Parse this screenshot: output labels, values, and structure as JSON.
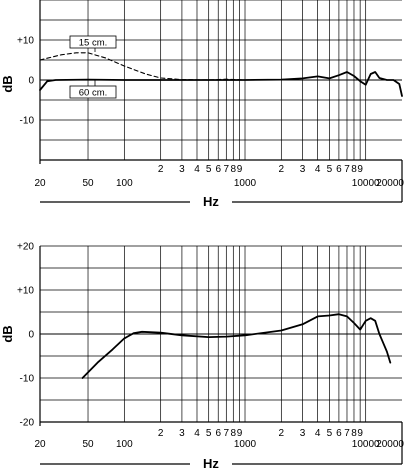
{
  "chart_data": [
    {
      "type": "line",
      "x_scale": "log",
      "xlim": [
        20,
        20000
      ],
      "ylim": [
        -20,
        20
      ],
      "xlabel": "Hz",
      "ylabel": "dB",
      "grid": true,
      "y_ticks": [
        {
          "value": 10,
          "label": "+10"
        },
        {
          "value": 0,
          "label": "0"
        },
        {
          "value": -10,
          "label": "-10"
        }
      ],
      "x_ticks": [
        {
          "value": 20,
          "label": "20",
          "row": "main"
        },
        {
          "value": 50,
          "label": "50",
          "row": "main"
        },
        {
          "value": 100,
          "label": "100",
          "row": "main"
        },
        {
          "value": 200,
          "label": "2",
          "row": "minor"
        },
        {
          "value": 300,
          "label": "3",
          "row": "minor"
        },
        {
          "value": 400,
          "label": "4",
          "row": "minor"
        },
        {
          "value": 500,
          "label": "5",
          "row": "minor"
        },
        {
          "value": 600,
          "label": "6",
          "row": "minor"
        },
        {
          "value": 700,
          "label": "7",
          "row": "minor"
        },
        {
          "value": 800,
          "label": "8",
          "row": "minor"
        },
        {
          "value": 900,
          "label": "9",
          "row": "minor"
        },
        {
          "value": 1000,
          "label": "1000",
          "row": "main"
        },
        {
          "value": 2000,
          "label": "2",
          "row": "minor"
        },
        {
          "value": 3000,
          "label": "3",
          "row": "minor"
        },
        {
          "value": 4000,
          "label": "4",
          "row": "minor"
        },
        {
          "value": 5000,
          "label": "5",
          "row": "minor"
        },
        {
          "value": 6000,
          "label": "6",
          "row": "minor"
        },
        {
          "value": 7000,
          "label": "7",
          "row": "minor"
        },
        {
          "value": 8000,
          "label": "8",
          "row": "minor"
        },
        {
          "value": 9000,
          "label": "9",
          "row": "minor"
        },
        {
          "value": 10000,
          "label": "10000",
          "row": "main"
        },
        {
          "value": 20000,
          "label": "20000",
          "row": "main"
        }
      ],
      "series": [
        {
          "name": "15 cm.",
          "style": "dashed",
          "points": [
            [
              20,
              5
            ],
            [
              30,
              6.3
            ],
            [
              40,
              6.8
            ],
            [
              50,
              6.8
            ],
            [
              70,
              5.5
            ],
            [
              100,
              3.5
            ],
            [
              150,
              1.5
            ],
            [
              200,
              0.5
            ],
            [
              300,
              0.1
            ],
            [
              500,
              0
            ],
            [
              700,
              0.2
            ],
            [
              1000,
              0
            ],
            [
              2000,
              0.1
            ],
            [
              3000,
              0.4
            ],
            [
              4000,
              0.9
            ],
            [
              5000,
              0.4
            ],
            [
              6000,
              1.2
            ],
            [
              7000,
              2
            ],
            [
              8000,
              1
            ],
            [
              9000,
              -0.3
            ],
            [
              10000,
              -1.2
            ],
            [
              11000,
              1.5
            ],
            [
              12000,
              2
            ],
            [
              13000,
              0.5
            ],
            [
              15000,
              0
            ],
            [
              17000,
              0
            ],
            [
              19000,
              -1
            ],
            [
              20000,
              -4
            ]
          ]
        },
        {
          "name": "60 cm.",
          "style": "solid",
          "points": [
            [
              20,
              -2.5
            ],
            [
              23,
              -0.3
            ],
            [
              27,
              0
            ],
            [
              50,
              0.1
            ],
            [
              100,
              0
            ],
            [
              200,
              0
            ],
            [
              500,
              0
            ],
            [
              1000,
              0
            ],
            [
              2000,
              0.1
            ],
            [
              3000,
              0.4
            ],
            [
              4000,
              0.9
            ],
            [
              5000,
              0.4
            ],
            [
              6000,
              1.2
            ],
            [
              7000,
              2
            ],
            [
              8000,
              1
            ],
            [
              9000,
              -0.3
            ],
            [
              10000,
              -1.2
            ],
            [
              11000,
              1.5
            ],
            [
              12000,
              2
            ],
            [
              13000,
              0.5
            ],
            [
              15000,
              0
            ],
            [
              17000,
              0
            ],
            [
              19000,
              -1
            ],
            [
              20000,
              -4
            ]
          ]
        }
      ],
      "annotations": [
        {
          "text": "15 cm.",
          "target": "15 cm."
        },
        {
          "text": "60 cm.",
          "target": "60 cm."
        }
      ]
    },
    {
      "type": "line",
      "x_scale": "log",
      "xlim": [
        20,
        20000
      ],
      "ylim": [
        -20,
        20
      ],
      "xlabel": "Hz",
      "ylabel": "dB",
      "grid": true,
      "y_ticks": [
        {
          "value": 20,
          "label": "+20"
        },
        {
          "value": 10,
          "label": "+10"
        },
        {
          "value": 0,
          "label": "0"
        },
        {
          "value": -10,
          "label": "-10"
        },
        {
          "value": -20,
          "label": "-20"
        }
      ],
      "x_ticks": [
        {
          "value": 20,
          "label": "20",
          "row": "main"
        },
        {
          "value": 50,
          "label": "50",
          "row": "main"
        },
        {
          "value": 100,
          "label": "100",
          "row": "main"
        },
        {
          "value": 200,
          "label": "2",
          "row": "minor"
        },
        {
          "value": 300,
          "label": "3",
          "row": "minor"
        },
        {
          "value": 400,
          "label": "4",
          "row": "minor"
        },
        {
          "value": 500,
          "label": "5",
          "row": "minor"
        },
        {
          "value": 600,
          "label": "6",
          "row": "minor"
        },
        {
          "value": 700,
          "label": "7",
          "row": "minor"
        },
        {
          "value": 800,
          "label": "8",
          "row": "minor"
        },
        {
          "value": 900,
          "label": "9",
          "row": "minor"
        },
        {
          "value": 1000,
          "label": "1000",
          "row": "main"
        },
        {
          "value": 2000,
          "label": "2",
          "row": "minor"
        },
        {
          "value": 3000,
          "label": "3",
          "row": "minor"
        },
        {
          "value": 4000,
          "label": "4",
          "row": "minor"
        },
        {
          "value": 5000,
          "label": "5",
          "row": "minor"
        },
        {
          "value": 6000,
          "label": "6",
          "row": "minor"
        },
        {
          "value": 7000,
          "label": "7",
          "row": "minor"
        },
        {
          "value": 8000,
          "label": "8",
          "row": "minor"
        },
        {
          "value": 9000,
          "label": "9",
          "row": "minor"
        },
        {
          "value": 10000,
          "label": "10000",
          "row": "main"
        },
        {
          "value": 20000,
          "label": "20000",
          "row": "main"
        }
      ],
      "series": [
        {
          "style": "solid",
          "points": [
            [
              45,
              -10
            ],
            [
              60,
              -6.5
            ],
            [
              80,
              -3.5
            ],
            [
              100,
              -1
            ],
            [
              120,
              0.2
            ],
            [
              140,
              0.5
            ],
            [
              200,
              0.3
            ],
            [
              300,
              -0.3
            ],
            [
              500,
              -0.7
            ],
            [
              700,
              -0.6
            ],
            [
              1000,
              -0.3
            ],
            [
              2000,
              0.8
            ],
            [
              3000,
              2.2
            ],
            [
              4000,
              4
            ],
            [
              5000,
              4.2
            ],
            [
              6000,
              4.5
            ],
            [
              7000,
              4
            ],
            [
              8000,
              2.5
            ],
            [
              9000,
              1
            ],
            [
              10000,
              3
            ],
            [
              11000,
              3.6
            ],
            [
              12000,
              3
            ],
            [
              13000,
              0
            ],
            [
              15000,
              -4
            ],
            [
              16000,
              -6.5
            ]
          ]
        }
      ]
    }
  ]
}
